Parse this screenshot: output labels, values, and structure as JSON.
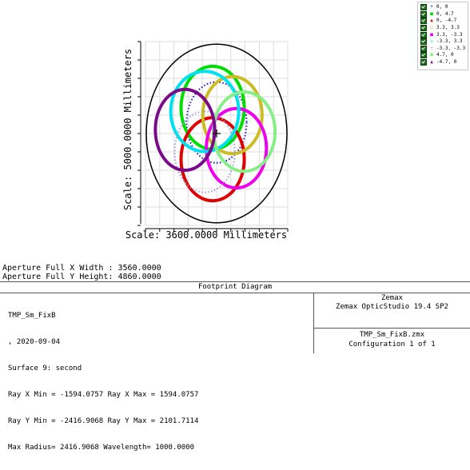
{
  "chart_data": {
    "type": "scatter",
    "xlabel": "Scale: 3600.0000 Millimeters",
    "ylabel": "Scale: 5000.0000 Millimeters",
    "xlim": [
      -1800,
      1800
    ],
    "ylim": [
      -2500,
      2500
    ],
    "grid": true,
    "legend_position": "top-right",
    "aperture": {
      "x_half_width": 1780,
      "y_half_height": 2430
    },
    "series": [
      {
        "name": "0, 0",
        "marker": "+",
        "color": "#1010d0",
        "style": "dotted",
        "center": [
          0,
          300
        ],
        "radius": [
          760,
          1100
        ]
      },
      {
        "name": "0, 4.7",
        "marker": "■",
        "color": "#00dd00",
        "style": "solid",
        "center": [
          -100,
          700
        ],
        "radius": [
          800,
          1130
        ]
      },
      {
        "name": "0, -4.7",
        "marker": "▲",
        "color": "#e00000",
        "style": "solid",
        "center": [
          -100,
          -700
        ],
        "radius": [
          800,
          1130
        ]
      },
      {
        "name": "3.3, 3.3",
        "marker": "○",
        "color": "#ccbb22",
        "style": "solid",
        "center": [
          400,
          500
        ],
        "radius": [
          750,
          1050
        ]
      },
      {
        "name": "3.3, -3.3",
        "marker": "■",
        "color": "#ee00ee",
        "style": "solid",
        "center": [
          500,
          -400
        ],
        "radius": [
          760,
          1080
        ]
      },
      {
        "name": "-3.3, 3.3",
        "marker": "◇",
        "color": "#00e0ee",
        "style": "solid",
        "center": [
          -300,
          600
        ],
        "radius": [
          860,
          1090
        ]
      },
      {
        "name": "-3.3, -3.3",
        "marker": "+",
        "color": "#9999dd",
        "style": "dotted",
        "center": [
          -300,
          -500
        ],
        "radius": [
          760,
          1100
        ]
      },
      {
        "name": "4.7, 0",
        "marker": "■",
        "color": "#88ee88",
        "style": "solid",
        "center": [
          700,
          50
        ],
        "radius": [
          780,
          1080
        ]
      },
      {
        "name": "-4.7, 0",
        "marker": "▲",
        "color": "#7a0a8a",
        "style": "solid",
        "center": [
          -800,
          100
        ],
        "radius": [
          750,
          1100
        ]
      }
    ]
  },
  "aperture_text": {
    "x_width": "Aperture Full X Width : 3560.0000",
    "y_height": "Aperture Full Y Height: 4860.0000"
  },
  "info_box": {
    "title": "Footprint Diagram",
    "left_lines": [
      "TMP_Sm_FixB",
      ", 2020-09-04",
      "Surface 9: second",
      "Ray X Min = -1594.0757 Ray X Max = 1594.0757",
      "Ray Y Min = -2416.9068 Ray Y Max = 2101.7114",
      "Max Radius= 2416.9068 Wavelength= 1000.0000"
    ],
    "company": "Zemax",
    "product": "Zemax OpticStudio 19.4 SP2",
    "file": "TMP_Sm_FixB.zmx",
    "configuration": "Configuration 1 of 1"
  }
}
